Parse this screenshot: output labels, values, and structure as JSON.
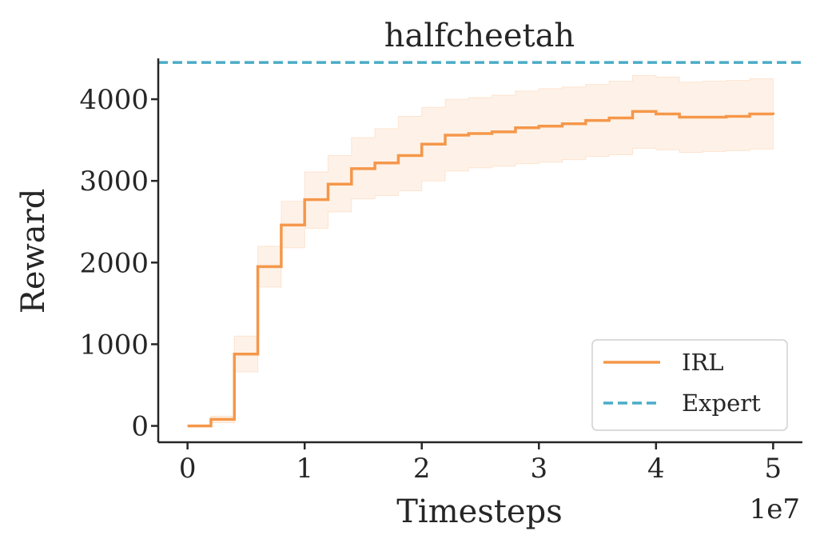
{
  "chart_data": {
    "type": "line",
    "title": "halfcheetah",
    "xlabel": "Timesteps",
    "ylabel": "Reward",
    "x_offset_text": "1e7",
    "xlim": [
      -0.25,
      5.25
    ],
    "ylim": [
      -200,
      4500
    ],
    "x_ticks": [
      0,
      1,
      2,
      3,
      4,
      5
    ],
    "x_tick_labels": [
      "0",
      "1",
      "2",
      "3",
      "4",
      "5"
    ],
    "y_ticks": [
      0,
      1000,
      2000,
      3000,
      4000
    ],
    "y_tick_labels": [
      "0",
      "1000",
      "2000",
      "3000",
      "4000"
    ],
    "grid": false,
    "legend_position": "lower-right",
    "step_style": "post",
    "series": [
      {
        "name": "IRL",
        "color": "#f5974a",
        "style": "solid",
        "x": [
          0,
          0.2,
          0.4,
          0.6,
          0.8,
          1.0,
          1.2,
          1.4,
          1.6,
          1.8,
          2.0,
          2.2,
          2.4,
          2.6,
          2.8,
          3.0,
          3.2,
          3.4,
          3.6,
          3.8,
          4.0,
          4.2,
          4.4,
          4.6,
          4.8,
          5.0
        ],
        "y": [
          0,
          80,
          880,
          1950,
          2460,
          2770,
          2960,
          3150,
          3220,
          3310,
          3450,
          3560,
          3580,
          3600,
          3650,
          3670,
          3700,
          3740,
          3770,
          3850,
          3820,
          3780,
          3780,
          3790,
          3820,
          3810
        ],
        "band_lower": [
          0,
          40,
          660,
          1700,
          2180,
          2420,
          2620,
          2780,
          2820,
          2880,
          3000,
          3120,
          3160,
          3180,
          3210,
          3230,
          3260,
          3300,
          3320,
          3400,
          3380,
          3350,
          3360,
          3370,
          3390,
          3380
        ],
        "band_upper": [
          0,
          120,
          1100,
          2200,
          2750,
          3110,
          3310,
          3530,
          3640,
          3790,
          3900,
          4000,
          4020,
          4050,
          4100,
          4130,
          4150,
          4180,
          4220,
          4290,
          4270,
          4210,
          4220,
          4230,
          4250,
          4240
        ]
      },
      {
        "name": "Expert",
        "color": "#4bacc6",
        "style": "dashed",
        "y_constant": 4450
      }
    ]
  }
}
